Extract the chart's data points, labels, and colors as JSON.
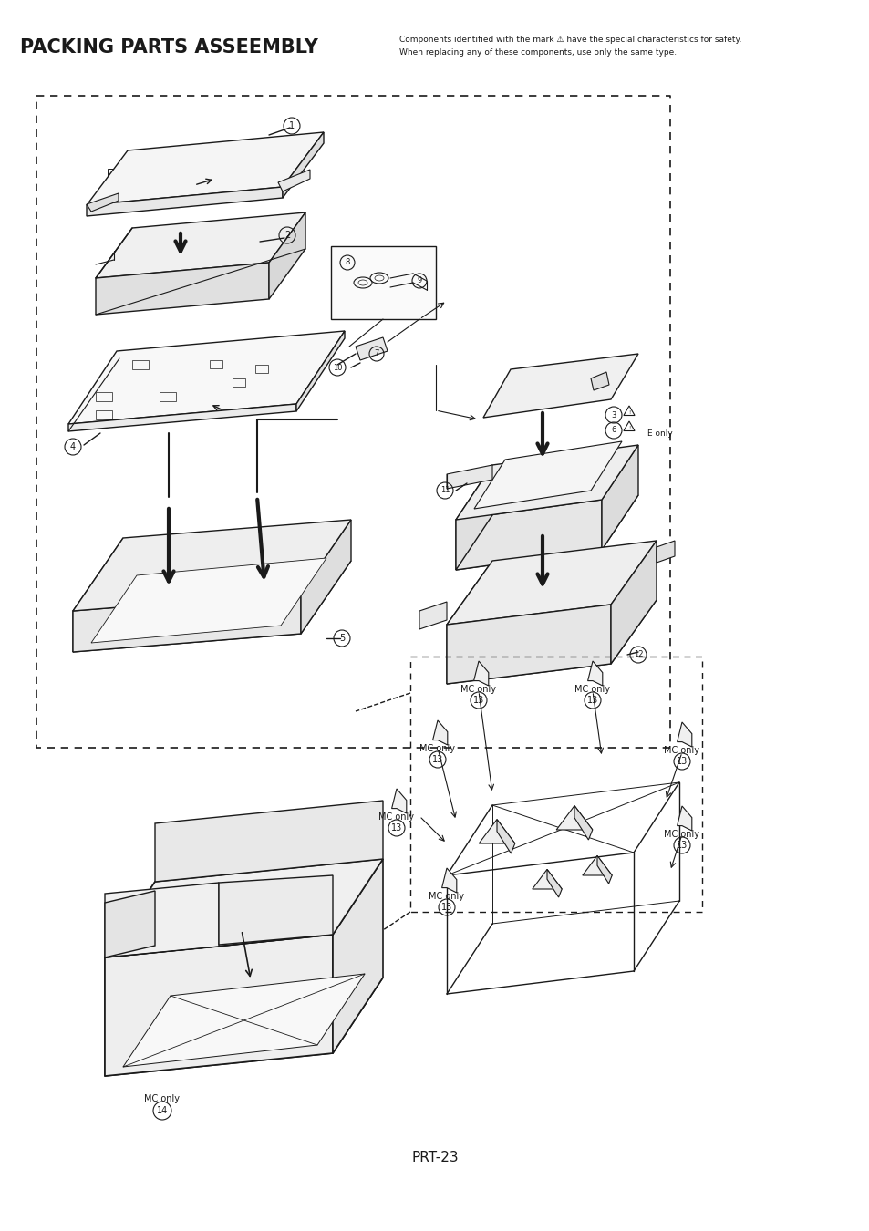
{
  "title": "PACKING PARTS ASSEEMBLY",
  "safety_text_line1": "Components identified with the mark ⚠ have the special characteristics for safety.",
  "safety_text_line2": "When replacing any of these components, use only the same type.",
  "page_label": "PRT-23",
  "bg_color": "#ffffff",
  "line_color": "#1a1a1a",
  "title_fontsize": 15,
  "safety_fontsize": 6.5,
  "page_label_fontsize": 11,
  "fig_width": 9.54,
  "fig_height": 13.5,
  "dpi": 100
}
